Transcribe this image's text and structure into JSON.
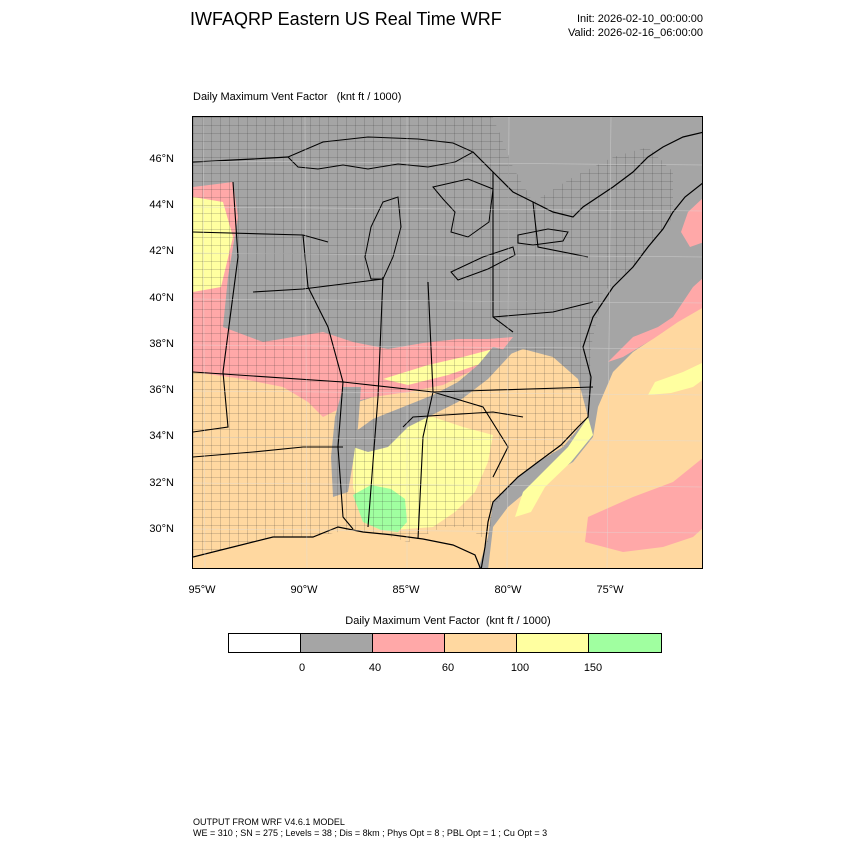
{
  "header": {
    "title": "IWFAQRP Eastern US Real Time WRF",
    "init": "Init: 2026-02-10_00:00:00",
    "valid": "Valid: 2026-02-16_06:00:00"
  },
  "plot": {
    "title": "Daily Maximum Vent Factor   (knt ft / 1000)",
    "lat_labels": [
      "46°N",
      "44°N",
      "42°N",
      "40°N",
      "38°N",
      "36°N",
      "34°N",
      "32°N",
      "30°N"
    ],
    "lon_labels": [
      "95°W",
      "90°W",
      "85°W",
      "80°W",
      "75°W"
    ]
  },
  "colors": {
    "land_low": "#a5a5a5",
    "pink": "#ffa8a8",
    "orange": "#ffd8a0",
    "yellow": "#ffffa0",
    "green": "#a0ffa0",
    "white": "#ffffff"
  },
  "colorbar": {
    "title": "Daily Maximum Vent Factor  (knt ft / 1000)",
    "tick_labels": [
      "0",
      "40",
      "60",
      "100",
      "150"
    ],
    "box_colors": [
      "#ffffff",
      "#a5a5a5",
      "#ffa8a8",
      "#ffd8a0",
      "#ffffa0",
      "#a0ffa0"
    ]
  },
  "footer": {
    "line1": "OUTPUT FROM WRF V4.6.1 MODEL",
    "line2": "WE = 310 ; SN = 275 ; Levels = 38 ; Dis = 8km ; Phys Opt = 8 ; PBL Opt = 1 ; Cu Opt = 3"
  }
}
